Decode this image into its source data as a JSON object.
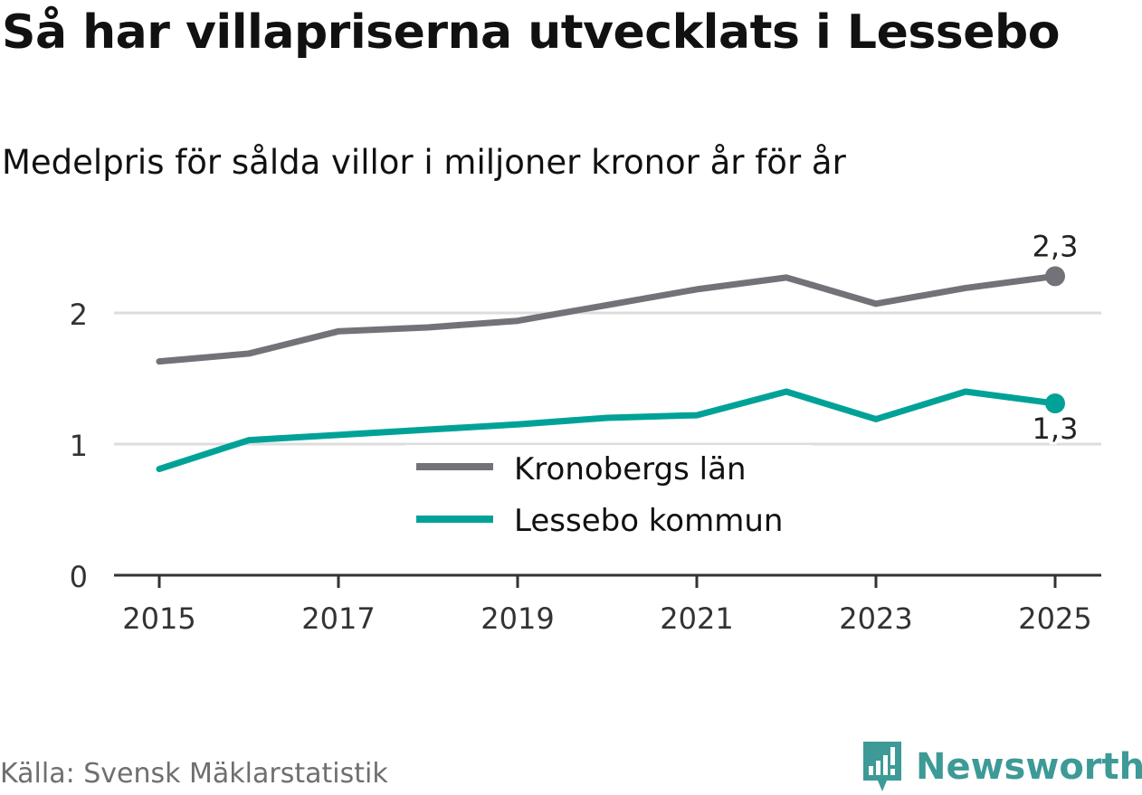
{
  "header": {
    "title": "Så har villapriserna utvecklats i Lessebo",
    "subtitle": "Medelpris för sålda villor i miljoner kronor år för år"
  },
  "footer": {
    "source": "Källa: Svensk Mäklarstatistik",
    "brand": "Newsworthy"
  },
  "colors": {
    "kronoberg": "#737278",
    "lessebo": "#00a297",
    "grid": "#dddddd",
    "axis": "#333333",
    "brand": "#3d9a96"
  },
  "chart_data": {
    "type": "line",
    "title": "Så har villapriserna utvecklats i Lessebo",
    "subtitle": "Medelpris för sålda villor i miljoner kronor år för år",
    "xlabel": "",
    "ylabel": "",
    "x": [
      2015,
      2016,
      2017,
      2018,
      2019,
      2020,
      2021,
      2022,
      2023,
      2024,
      2025
    ],
    "x_ticks": [
      "2015",
      "2017",
      "2019",
      "2021",
      "2023",
      "2025"
    ],
    "y_ticks": [
      "0",
      "1",
      "2"
    ],
    "ylim": [
      0,
      2.5
    ],
    "grid": true,
    "legend_position": "center",
    "series": [
      {
        "name": "Kronobergs län",
        "values": [
          1.63,
          1.69,
          1.86,
          1.89,
          1.94,
          2.06,
          2.18,
          2.27,
          2.07,
          2.19,
          2.28
        ],
        "end_label": "2,3"
      },
      {
        "name": "Lessebo kommun",
        "values": [
          0.81,
          1.03,
          1.07,
          1.11,
          1.15,
          1.2,
          1.22,
          1.4,
          1.19,
          1.4,
          1.31
        ],
        "end_label": "1,3"
      }
    ]
  }
}
